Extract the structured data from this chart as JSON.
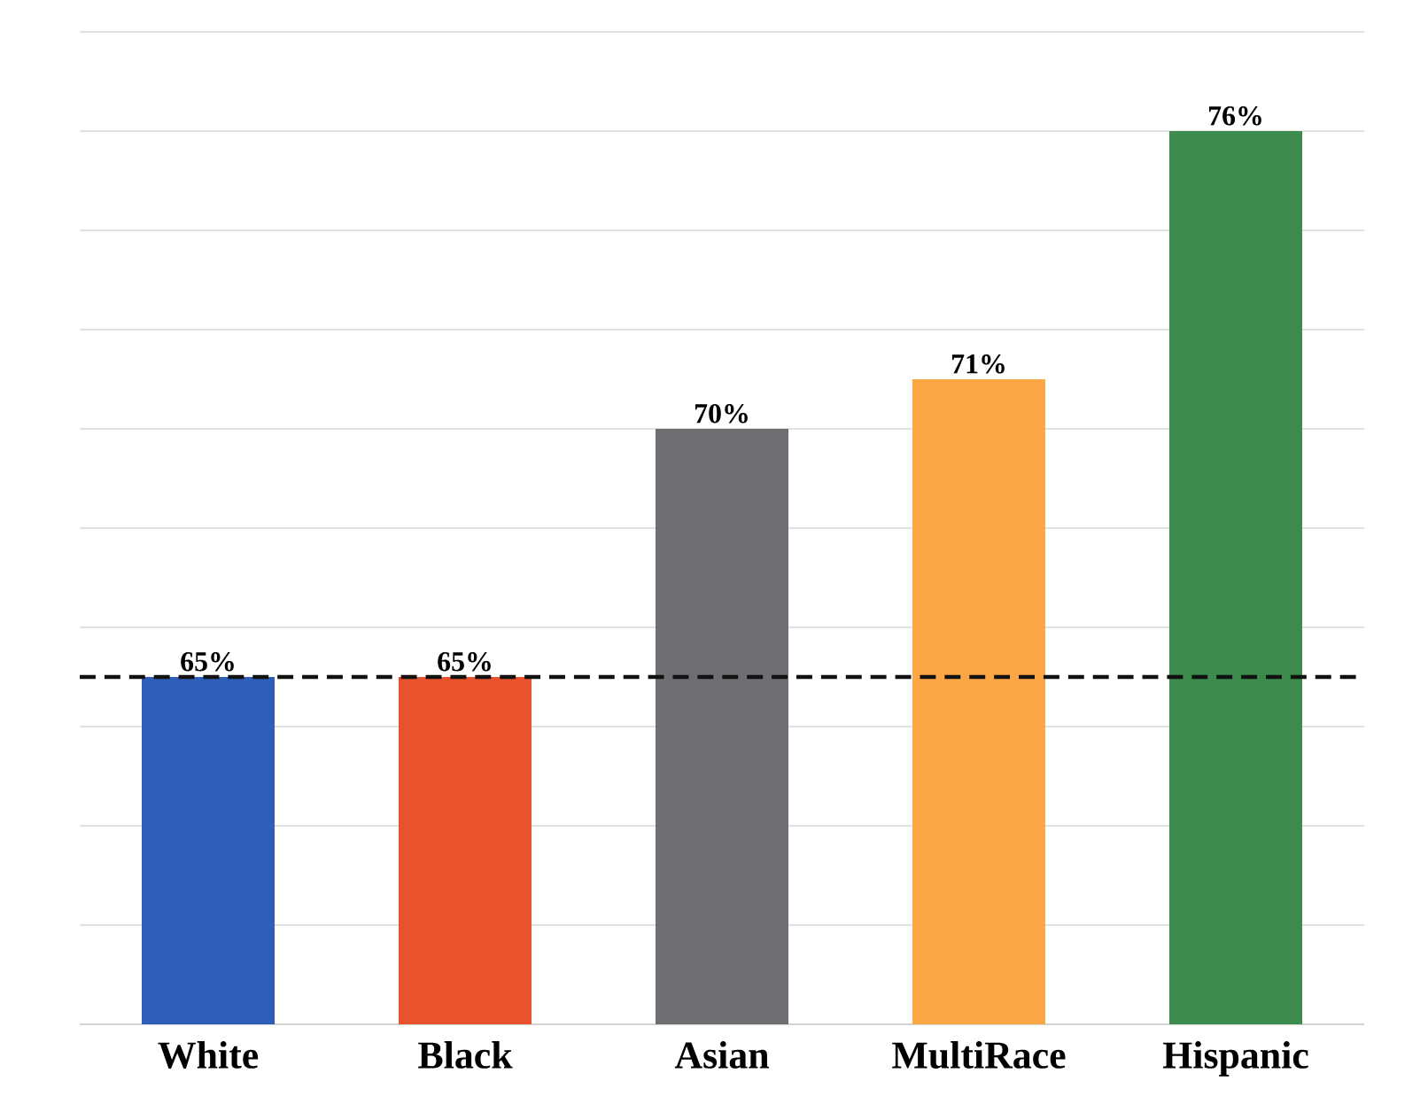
{
  "chart_data": {
    "type": "bar",
    "categories": [
      "White",
      "Black",
      "Asian",
      "MultiRace",
      "Hispanic"
    ],
    "values": [
      65,
      65,
      70,
      71,
      76
    ],
    "colors": [
      "#2e5eb8",
      "#e8522c",
      "#6f6e73",
      "#fca745",
      "#3d8a4d"
    ],
    "value_labels": [
      "65%",
      "65%",
      "70%",
      "71%",
      "76%"
    ],
    "ylim": [
      58,
      78
    ],
    "yticks": [
      {
        "value": 58,
        "label": null
      },
      {
        "value": 60,
        "label": null
      },
      {
        "value": 62,
        "label": null
      },
      {
        "value": 64,
        "label": null
      },
      {
        "value": 66,
        "label": null
      },
      {
        "value": 68,
        "label": null
      },
      {
        "value": 70,
        "label": null
      },
      {
        "value": 72,
        "label": null
      },
      {
        "value": 74,
        "label": null
      },
      {
        "value": 76,
        "label": null
      },
      {
        "value": 78,
        "label": null
      }
    ],
    "tick_labels": "x",
    "grid": "y",
    "ref_lines": [
      {
        "axis": "y",
        "value": 65,
        "color": "#111111",
        "line_style": "dashed"
      }
    ]
  }
}
